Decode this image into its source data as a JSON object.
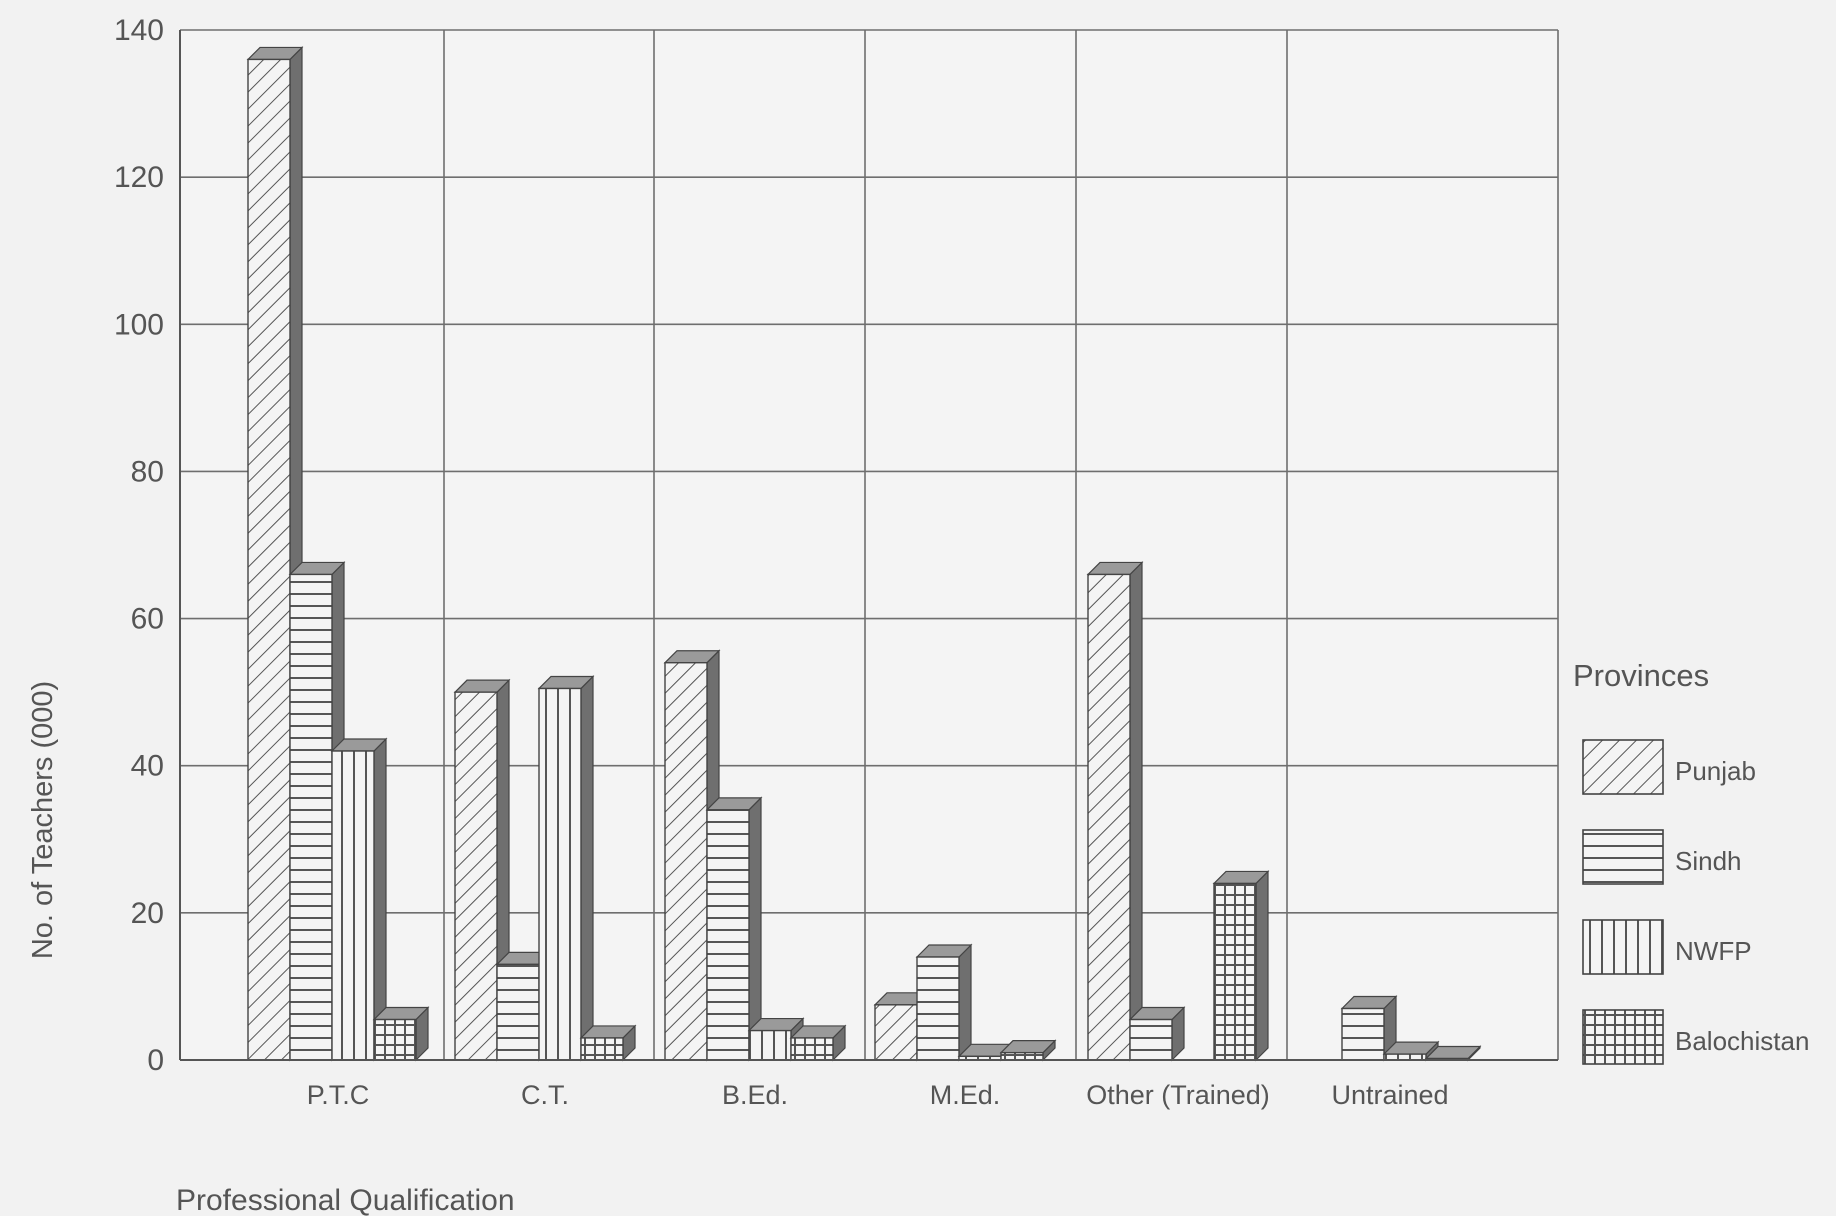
{
  "chart_data": {
    "type": "bar",
    "title": "",
    "xlabel": "Professional Qualification",
    "ylabel": "No. of Teachers (000)",
    "ylim": [
      0,
      140
    ],
    "yticks": [
      0,
      20,
      40,
      60,
      80,
      100,
      120,
      140
    ],
    "grid": true,
    "categories": [
      "P.T.C",
      "C.T.",
      "B.Ed.",
      "M.Ed.",
      "Other (Trained)",
      "Untrained"
    ],
    "legend": {
      "title": "Provinces",
      "placement": "right"
    },
    "series": [
      {
        "name": "Punjab",
        "pattern": "diagonal",
        "values": [
          136,
          50,
          54,
          7.5,
          66,
          0
        ]
      },
      {
        "name": "Sindh",
        "pattern": "horizontal",
        "values": [
          66,
          13,
          34,
          14,
          5.5,
          7
        ]
      },
      {
        "name": "NWFP",
        "pattern": "vertical",
        "values": [
          42,
          50.5,
          4,
          0.5,
          0,
          0.8
        ]
      },
      {
        "name": "Balochistan",
        "pattern": "grid",
        "values": [
          5.5,
          3,
          3,
          1,
          24,
          0.2
        ]
      }
    ]
  }
}
